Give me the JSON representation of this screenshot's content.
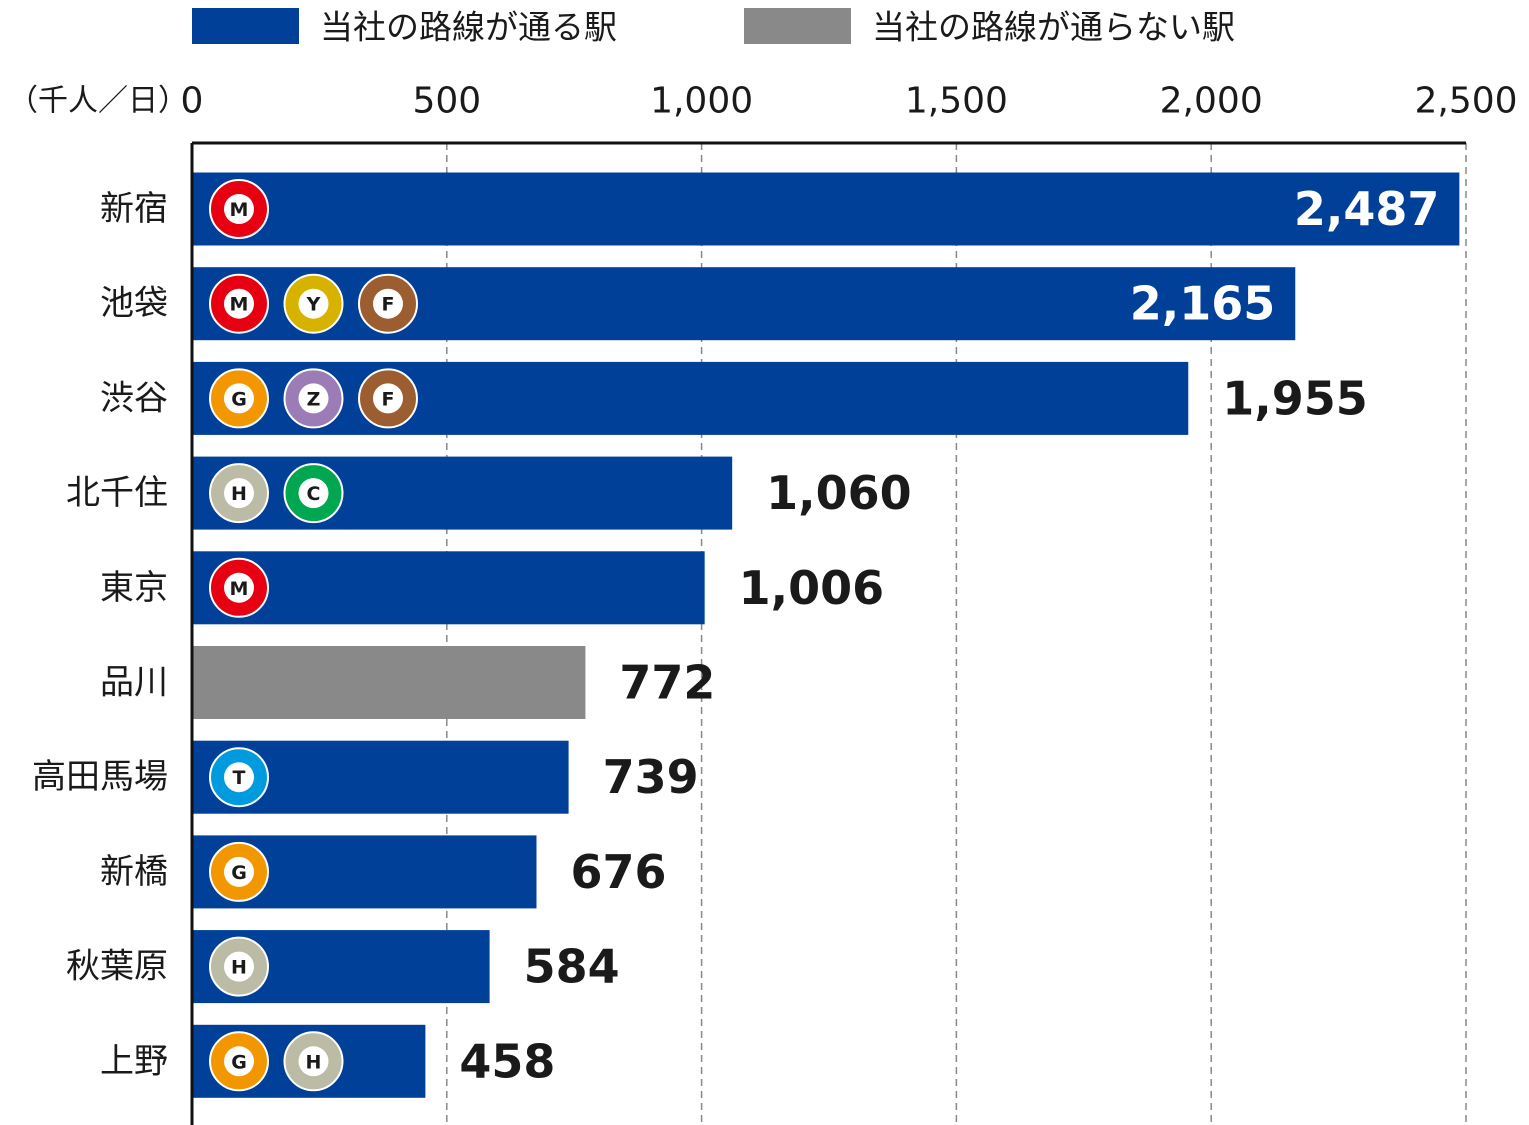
{
  "chart_data": {
    "type": "hbar",
    "axis_label": "（千人／日）",
    "categories": [
      "新宿",
      "池袋",
      "渋谷",
      "北千住",
      "東京",
      "品川",
      "高田馬場",
      "新橋",
      "秋葉原",
      "上野"
    ],
    "series": [
      {
        "name": "当社の路線が通る駅",
        "color": "#004098",
        "values": [
          2487,
          2165,
          1955,
          1060,
          1006,
          null,
          739,
          676,
          584,
          458
        ],
        "value_labels": [
          "2,487",
          "2,165",
          "1,955",
          "1,060",
          "1,006",
          null,
          "739",
          "676",
          "584",
          "458"
        ]
      },
      {
        "name": "当社の路線が通らない駅",
        "color": "#898989",
        "values": [
          null,
          null,
          null,
          null,
          null,
          772,
          null,
          null,
          null,
          null
        ],
        "value_labels": [
          null,
          null,
          null,
          null,
          null,
          "772",
          null,
          null,
          null,
          null
        ]
      }
    ],
    "badges": [
      [
        {
          "label": "M",
          "color": "#e60012"
        }
      ],
      [
        {
          "label": "M",
          "color": "#e60012"
        },
        {
          "label": "Y",
          "color": "#d7b300"
        },
        {
          "label": "F",
          "color": "#9c5e31"
        }
      ],
      [
        {
          "label": "G",
          "color": "#f39700"
        },
        {
          "label": "Z",
          "color": "#9b7cb6"
        },
        {
          "label": "F",
          "color": "#9c5e31"
        }
      ],
      [
        {
          "label": "H",
          "color": "#bcbba6"
        },
        {
          "label": "C",
          "color": "#00a650"
        }
      ],
      [
        {
          "label": "M",
          "color": "#e60012"
        }
      ],
      [],
      [
        {
          "label": "T",
          "color": "#009bdf"
        }
      ],
      [
        {
          "label": "G",
          "color": "#f39700"
        }
      ],
      [
        {
          "label": "H",
          "color": "#bcbba6"
        }
      ],
      [
        {
          "label": "G",
          "color": "#f39700"
        },
        {
          "label": "H",
          "color": "#bcbba6"
        }
      ]
    ],
    "xlim": [
      0,
      2500
    ],
    "xticks": [
      0,
      500,
      {
        "value": 1000,
        "label": "1,000"
      },
      {
        "value": 1500,
        "label": "1,500"
      },
      {
        "value": 2000,
        "label": "2,000"
      },
      {
        "value": 2500,
        "label": "2,500"
      }
    ],
    "grid": true,
    "legend": "top"
  }
}
